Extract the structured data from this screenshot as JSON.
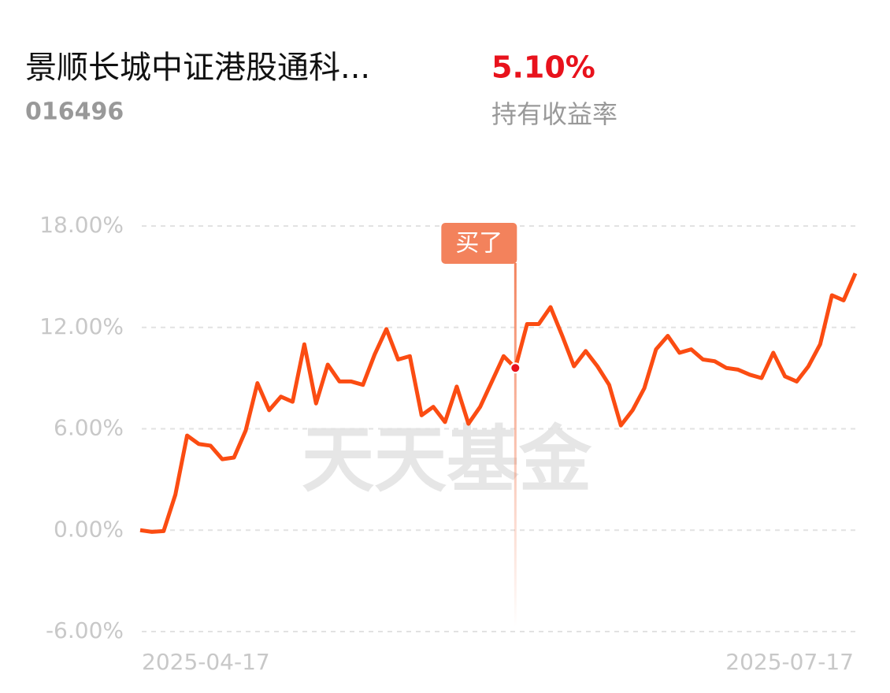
{
  "header": {
    "fund_name": "景顺长城中证港股通科...",
    "fund_code": "016496",
    "holding_return": "5.10%",
    "holding_return_label": "持有收益率"
  },
  "chart_data": {
    "type": "line",
    "watermark": "天天基金",
    "categories": [
      "2025-04-17",
      null,
      null,
      null,
      null,
      null,
      null,
      null,
      null,
      null,
      null,
      null,
      null,
      null,
      null,
      null,
      null,
      null,
      null,
      null,
      null,
      null,
      null,
      null,
      null,
      null,
      null,
      null,
      null,
      null,
      null,
      null,
      null,
      null,
      null,
      null,
      null,
      null,
      null,
      null,
      null,
      null,
      null,
      null,
      null,
      null,
      null,
      null,
      null,
      null,
      null,
      null,
      null,
      null,
      null,
      null,
      null,
      null,
      null,
      null,
      null,
      "2025-07-17"
    ],
    "series": [
      {
        "name": "持有收益率",
        "color": "#fb4c12",
        "values": [
          0,
          -0.1,
          -0.05,
          2.1,
          5.6,
          5.1,
          5.0,
          4.2,
          4.3,
          5.9,
          8.7,
          7.1,
          7.9,
          7.6,
          11.0,
          7.5,
          9.8,
          8.8,
          8.8,
          8.6,
          10.4,
          11.9,
          10.1,
          10.3,
          6.8,
          7.3,
          6.4,
          8.5,
          6.3,
          7.3,
          8.8,
          10.3,
          9.6,
          12.2,
          12.2,
          13.2,
          11.5,
          9.7,
          10.6,
          9.7,
          8.6,
          6.2,
          7.1,
          8.4,
          10.7,
          11.5,
          10.5,
          10.7,
          10.1,
          10.0,
          9.6,
          9.5,
          9.2,
          9.0,
          10.5,
          9.1,
          8.8,
          9.7,
          11.0,
          13.9,
          13.6,
          15.2
        ]
      }
    ],
    "annotations": [
      {
        "text": "买了",
        "point": 32,
        "color": "#f3825c"
      }
    ],
    "ylim": [
      -6,
      18
    ],
    "yticks": [
      {
        "value": -6,
        "label": "-6.00%"
      },
      {
        "value": 0,
        "label": "0.00%"
      },
      {
        "value": 6,
        "label": "6.00%"
      },
      {
        "value": 12,
        "label": "12.00%"
      },
      {
        "value": 18,
        "label": "18.00%"
      }
    ],
    "grid": true
  }
}
